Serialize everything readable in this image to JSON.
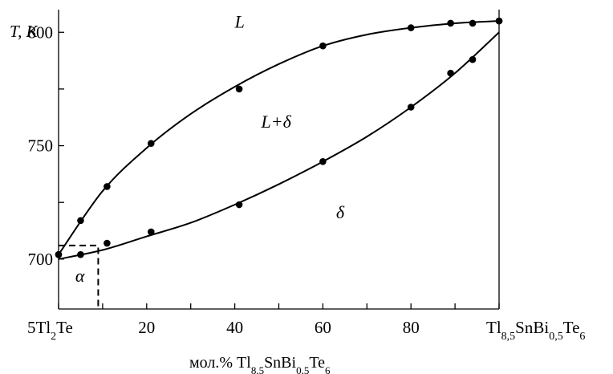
{
  "chart_data": {
    "type": "scatter",
    "title": "",
    "ylabel": "T, K",
    "xlabel": {
      "prefix": "мол.% Tl",
      "sub1": "8,5",
      "mid1": "SnBi",
      "sub2": "0,5",
      "mid2": "Te",
      "sub3": "6"
    },
    "xlim": [
      0,
      100
    ],
    "ylim": [
      678,
      810
    ],
    "x_ticks": [
      0,
      10,
      20,
      30,
      40,
      50,
      60,
      70,
      80,
      90,
      100
    ],
    "x_tick_labels": [
      {
        "x": 20,
        "text": "20"
      },
      {
        "x": 40,
        "text": "40"
      },
      {
        "x": 60,
        "text": "60"
      },
      {
        "x": 80,
        "text": "80"
      }
    ],
    "x_end_labels": {
      "left": {
        "pre": "5Tl",
        "sub": "2",
        "post": "Te"
      },
      "right": {
        "pre": "Tl",
        "sub1": "8,5",
        "mid1": "SnBi",
        "sub2": "0,5",
        "mid2": "Te",
        "sub3": "6"
      }
    },
    "y_ticks": [
      700,
      725,
      750,
      775,
      800
    ],
    "y_tick_labels": [
      700,
      750,
      800
    ],
    "series": [
      {
        "role": "liquidus",
        "points": [
          [
            0,
            702
          ],
          [
            5,
            717
          ],
          [
            11,
            732
          ],
          [
            21,
            751
          ],
          [
            41,
            775
          ],
          [
            60,
            794
          ],
          [
            80,
            802
          ],
          [
            89,
            804
          ],
          [
            94,
            804
          ],
          [
            100,
            805
          ]
        ]
      },
      {
        "role": "solidus",
        "points": [
          [
            0,
            702
          ],
          [
            5,
            702
          ],
          [
            11,
            707
          ],
          [
            21,
            712
          ],
          [
            41,
            724
          ],
          [
            60,
            743
          ],
          [
            80,
            767
          ],
          [
            89,
            782
          ],
          [
            94,
            788
          ],
          [
            100,
            805
          ]
        ]
      }
    ],
    "curves": {
      "liquidus": [
        [
          0,
          702
        ],
        [
          10,
          730
        ],
        [
          20,
          749
        ],
        [
          30,
          764
        ],
        [
          40,
          776
        ],
        [
          50,
          786
        ],
        [
          60,
          794
        ],
        [
          70,
          799
        ],
        [
          80,
          802
        ],
        [
          90,
          804
        ],
        [
          100,
          805
        ]
      ],
      "solidus": [
        [
          0,
          700
        ],
        [
          10,
          704
        ],
        [
          20,
          710
        ],
        [
          30,
          716
        ],
        [
          40,
          724
        ],
        [
          50,
          733
        ],
        [
          60,
          743
        ],
        [
          70,
          754
        ],
        [
          80,
          767
        ],
        [
          90,
          782
        ],
        [
          100,
          800
        ]
      ]
    },
    "dashed_region": {
      "x": [
        0,
        9
      ],
      "y": [
        678,
        706
      ]
    },
    "annotations": [
      {
        "label": "L",
        "x": 40,
        "y": 802
      },
      {
        "label": "L+δ",
        "x": 46,
        "y": 758
      },
      {
        "label": "δ",
        "x": 63,
        "y": 718
      },
      {
        "label": "α",
        "x": 3.8,
        "y": 690
      }
    ],
    "grid": false,
    "legend": "none"
  }
}
